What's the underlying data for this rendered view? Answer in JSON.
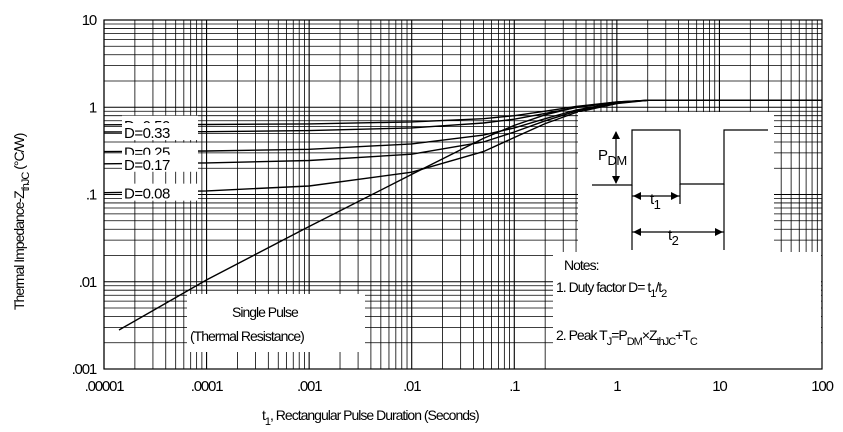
{
  "chart_data": {
    "type": "line",
    "x_scale": "log",
    "y_scale": "log",
    "xlim": [
      1e-05,
      100
    ],
    "ylim": [
      0.001,
      10
    ],
    "grid": true,
    "xlabel": "t1, Rectangular Pulse Duration (Seconds)",
    "ylabel": "Thermal Impedance-ZthJC (°C/W)",
    "x_ticks": [
      {
        "value": 1e-05,
        "label": ".00001"
      },
      {
        "value": 0.0001,
        "label": ".0001"
      },
      {
        "value": 0.001,
        "label": ".001"
      },
      {
        "value": 0.01,
        "label": ".01"
      },
      {
        "value": 0.1,
        "label": ".1"
      },
      {
        "value": 1,
        "label": "1"
      },
      {
        "value": 10,
        "label": "10"
      },
      {
        "value": 100,
        "label": "100"
      }
    ],
    "y_ticks": [
      {
        "value": 0.001,
        "label": ".001"
      },
      {
        "value": 0.01,
        "label": ".01"
      },
      {
        "value": 0.1,
        "label": ".1"
      },
      {
        "value": 1,
        "label": "1"
      },
      {
        "value": 10,
        "label": "10"
      }
    ],
    "series": [
      {
        "name": "D=0.50",
        "x": [
          1e-05,
          0.0001,
          0.001,
          0.01,
          0.05,
          0.1,
          0.2,
          0.4,
          1,
          2,
          100
        ],
        "y": [
          0.63,
          0.635,
          0.645,
          0.68,
          0.74,
          0.8,
          0.9,
          1.02,
          1.15,
          1.2,
          1.2
        ]
      },
      {
        "name": "D=0.33",
        "x": [
          1e-05,
          0.0001,
          0.001,
          0.01,
          0.05,
          0.1,
          0.2,
          0.4,
          1,
          2,
          100
        ],
        "y": [
          0.52,
          0.525,
          0.54,
          0.58,
          0.66,
          0.73,
          0.85,
          0.99,
          1.14,
          1.2,
          1.2
        ]
      },
      {
        "name": "D=0.25",
        "x": [
          1e-05,
          0.0001,
          0.001,
          0.01,
          0.05,
          0.1,
          0.2,
          0.4,
          1,
          2,
          100
        ],
        "y": [
          0.31,
          0.315,
          0.33,
          0.38,
          0.48,
          0.58,
          0.74,
          0.93,
          1.13,
          1.2,
          1.2
        ]
      },
      {
        "name": "D=0.17",
        "x": [
          1e-05,
          0.0001,
          0.001,
          0.01,
          0.05,
          0.1,
          0.2,
          0.4,
          1,
          2,
          100
        ],
        "y": [
          0.225,
          0.23,
          0.245,
          0.29,
          0.4,
          0.52,
          0.7,
          0.9,
          1.12,
          1.2,
          1.2
        ]
      },
      {
        "name": "D=0.08",
        "x": [
          1e-05,
          0.0001,
          0.001,
          0.01,
          0.05,
          0.1,
          0.2,
          0.4,
          1,
          2,
          100
        ],
        "y": [
          0.105,
          0.11,
          0.125,
          0.18,
          0.31,
          0.45,
          0.65,
          0.87,
          1.1,
          1.2,
          1.2
        ]
      },
      {
        "name": "Single Pulse",
        "x": [
          1.4e-05,
          0.0001,
          0.001,
          0.01,
          0.05,
          0.1,
          0.2,
          0.4,
          1,
          2,
          100
        ],
        "y": [
          0.0028,
          0.0105,
          0.043,
          0.17,
          0.44,
          0.62,
          0.82,
          1.0,
          1.15,
          1.2,
          1.2
        ]
      }
    ],
    "notes": {
      "title": "Notes:",
      "line1_prefix": "1. Duty factor D=",
      "line2_prefix": "2. Peak",
      "pulse_labels": {
        "pdm": "PDM",
        "t1": "t1",
        "t2": "t2"
      }
    },
    "single_pulse_label": [
      "Single Pulse",
      "(Thermal Resistance)"
    ]
  }
}
